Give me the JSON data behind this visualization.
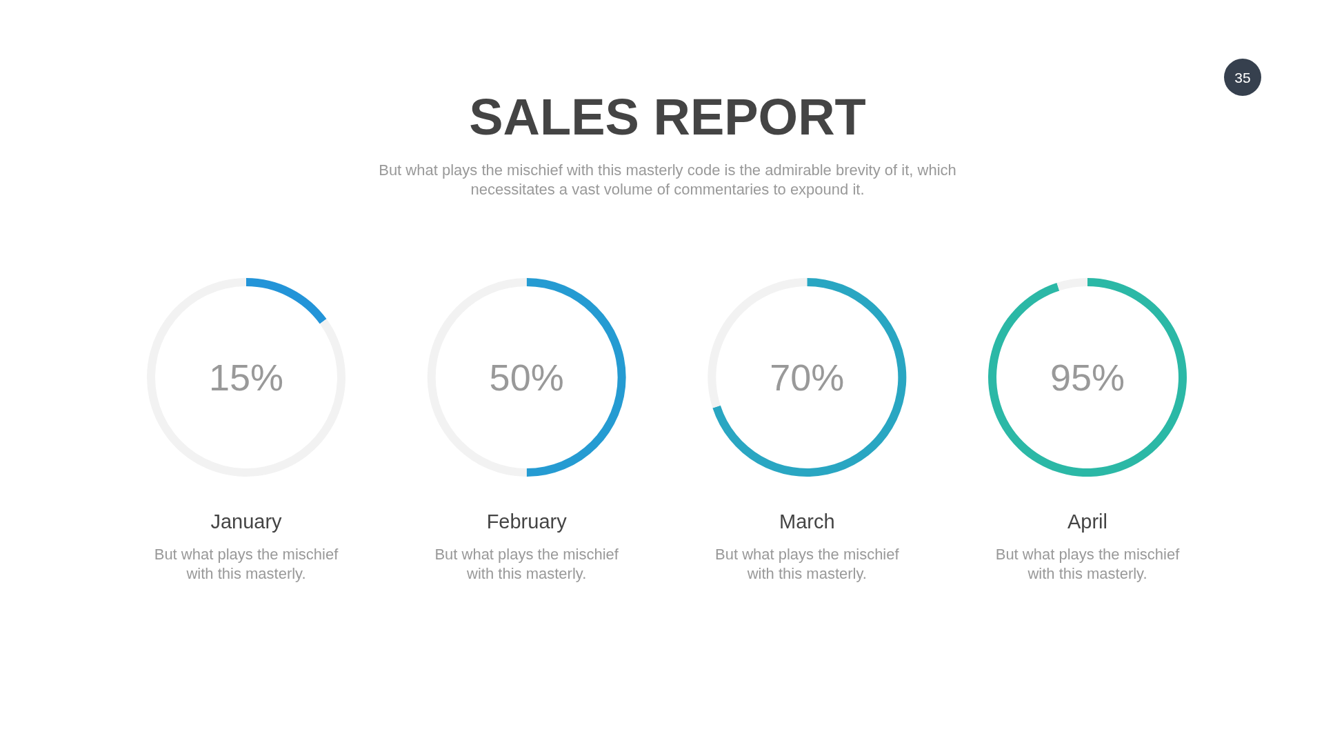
{
  "chart_data": [
    {
      "type": "other",
      "title": "SALES REPORT",
      "subtitle": "But what plays the mischief with this masterly code is the admirable brevity of it, which necessitates a vast volume of commentaries to expound it.",
      "annotations": [
        "35"
      ]
    },
    {
      "type": "donut",
      "title": "January",
      "annotations": [
        "15%",
        "But what plays the mischief with this masterly."
      ],
      "categories": [
        null,
        null
      ],
      "values": [
        15,
        85
      ],
      "colors": [
        "#2394d8",
        "#f2f2f2"
      ]
    },
    {
      "type": "donut",
      "title": "February",
      "annotations": [
        "50%",
        "But what plays the mischief with this masterly."
      ],
      "categories": [
        null,
        null
      ],
      "values": [
        50,
        50
      ],
      "colors": [
        "#259bd2",
        "#f2f2f2"
      ]
    },
    {
      "type": "donut",
      "title": "March",
      "annotations": [
        "70%",
        "But what plays the mischief with this masterly."
      ],
      "categories": [
        null,
        null
      ],
      "values": [
        70,
        30
      ],
      "colors": [
        "#29a6c2",
        "#f2f2f2"
      ]
    },
    {
      "type": "donut",
      "title": "April",
      "annotations": [
        "95%",
        "But what plays the mischief with this masterly."
      ],
      "categories": [
        null,
        null
      ],
      "values": [
        95,
        5
      ],
      "colors": [
        "#2bb8a6",
        "#f2f2f2"
      ]
    }
  ]
}
